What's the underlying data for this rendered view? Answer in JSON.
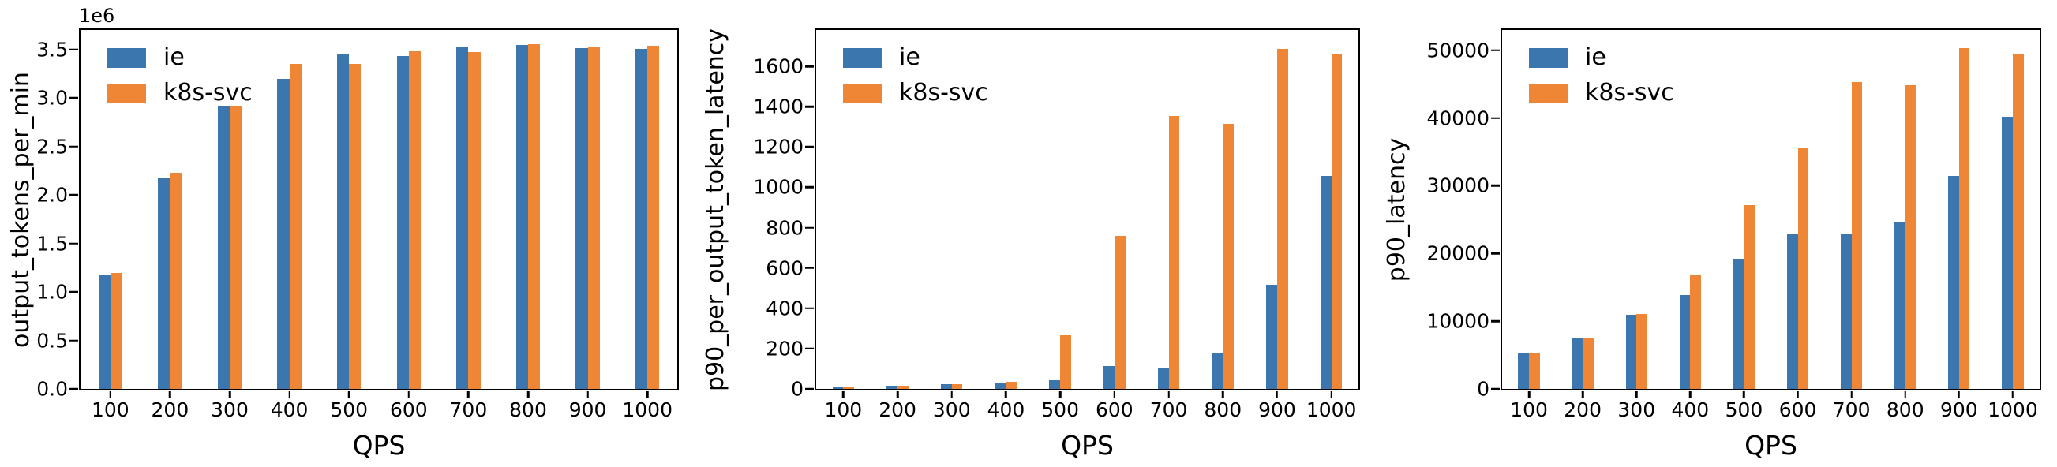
{
  "figure": {
    "background": "#ffffff",
    "spine_color": "#000000",
    "series_colors": {
      "ie": "#3b76af",
      "k8s-svc": "#ef8636"
    }
  },
  "chart_data": [
    {
      "type": "bar",
      "title": "",
      "xlabel": "QPS",
      "ylabel": "output_tokens_per_min",
      "offset_text": "1e6",
      "grid": false,
      "legend_position": "upper left",
      "categories": [
        "100",
        "200",
        "300",
        "400",
        "500",
        "600",
        "700",
        "800",
        "900",
        "1000"
      ],
      "series": [
        {
          "name": "ie",
          "color": "#3b76af",
          "values": [
            1170000,
            2170000,
            2910000,
            3200000,
            3450000,
            3430000,
            3520000,
            3545000,
            3510000,
            3505000
          ]
        },
        {
          "name": "k8s-svc",
          "color": "#ef8636",
          "values": [
            1195000,
            2225000,
            2920000,
            3350000,
            3350000,
            3480000,
            3470000,
            3555000,
            3520000,
            3540000
          ]
        }
      ],
      "ylim": [
        0,
        3700000
      ],
      "yticks": [
        0,
        500000,
        1000000,
        1500000,
        2000000,
        2500000,
        3000000,
        3500000
      ],
      "ytick_labels": [
        "0.0",
        "0.5",
        "1.0",
        "1.5",
        "2.0",
        "2.5",
        "3.0",
        "3.5"
      ]
    },
    {
      "type": "bar",
      "title": "",
      "xlabel": "QPS",
      "ylabel": "p90_per_output_token_latency",
      "offset_text": "",
      "grid": false,
      "legend_position": "upper left",
      "categories": [
        "100",
        "200",
        "300",
        "400",
        "500",
        "600",
        "700",
        "800",
        "900",
        "1000"
      ],
      "series": [
        {
          "name": "ie",
          "color": "#3b76af",
          "values": [
            8,
            15,
            22,
            30,
            45,
            115,
            105,
            175,
            515,
            1055
          ]
        },
        {
          "name": "k8s-svc",
          "color": "#ef8636",
          "values": [
            8,
            15,
            22,
            35,
            268,
            760,
            1355,
            1315,
            1685,
            1660
          ]
        }
      ],
      "ylim": [
        0,
        1780
      ],
      "yticks": [
        0,
        200,
        400,
        600,
        800,
        1000,
        1200,
        1400,
        1600
      ],
      "ytick_labels": [
        "0",
        "200",
        "400",
        "600",
        "800",
        "1000",
        "1200",
        "1400",
        "1600"
      ]
    },
    {
      "type": "bar",
      "title": "",
      "xlabel": "QPS",
      "ylabel": "p90_latency",
      "offset_text": "",
      "grid": false,
      "legend_position": "upper left",
      "categories": [
        "100",
        "200",
        "300",
        "400",
        "500",
        "600",
        "700",
        "800",
        "900",
        "1000"
      ],
      "series": [
        {
          "name": "ie",
          "color": "#3b76af",
          "values": [
            5200,
            7400,
            10900,
            13900,
            19200,
            23000,
            22800,
            24700,
            31400,
            40200
          ]
        },
        {
          "name": "k8s-svc",
          "color": "#ef8636",
          "values": [
            5400,
            7600,
            11100,
            16900,
            27100,
            35600,
            45300,
            44800,
            50300,
            49400
          ]
        }
      ],
      "ylim": [
        0,
        53000
      ],
      "yticks": [
        0,
        10000,
        20000,
        30000,
        40000,
        50000
      ],
      "ytick_labels": [
        "0",
        "10000",
        "20000",
        "30000",
        "40000",
        "50000"
      ]
    }
  ]
}
